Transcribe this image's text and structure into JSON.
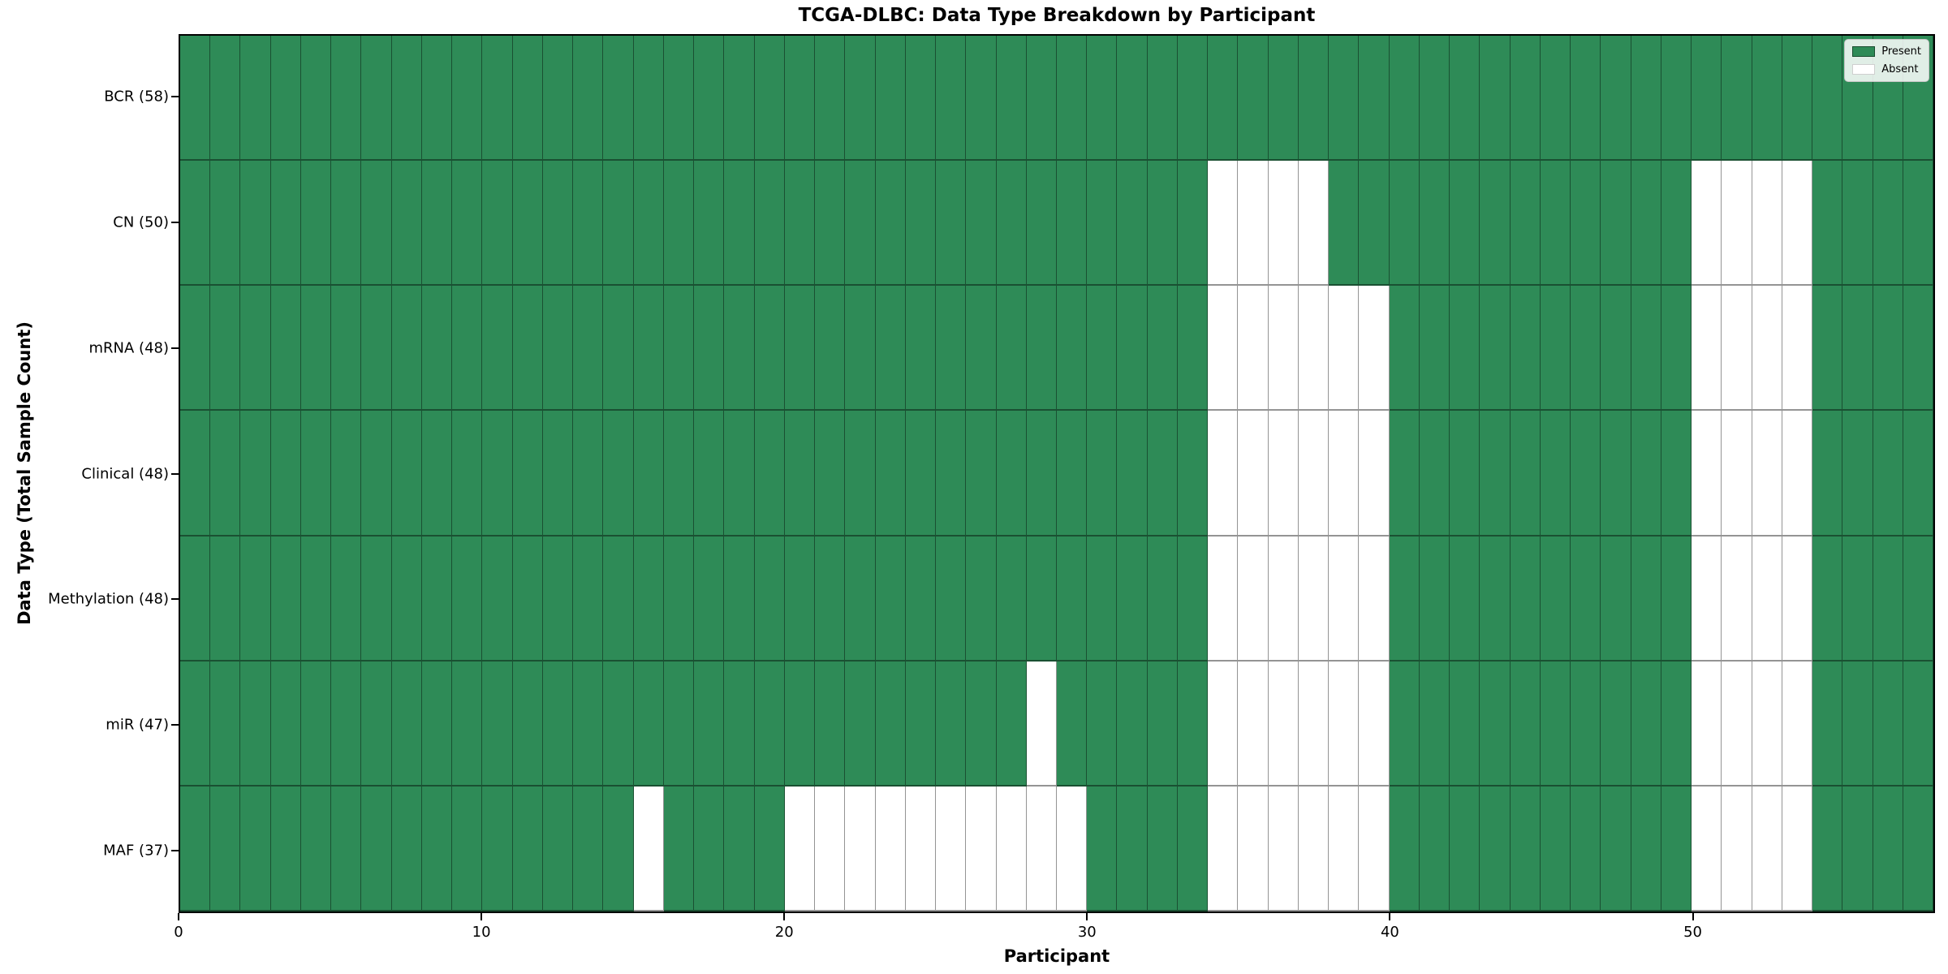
{
  "figure": {
    "title": "TCGA-DLBC: Data Type Breakdown by Participant",
    "xlabel": "Participant",
    "ylabel": "Data Type (Total Sample Count)"
  },
  "legend": {
    "items": [
      {
        "label": "Present",
        "state": "present"
      },
      {
        "label": "Absent",
        "state": "absent"
      }
    ]
  },
  "chart_data": {
    "type": "heatmap",
    "title": "TCGA-DLBC: Data Type Breakdown by Participant",
    "xlabel": "Participant",
    "ylabel": "Data Type (Total Sample Count)",
    "n_participants": 58,
    "x_axis": {
      "min": 0,
      "max": 58,
      "ticks": [
        0,
        10,
        20,
        30,
        40,
        50
      ]
    },
    "cell_values": {
      "present": 1,
      "absent": 0
    },
    "colors": {
      "present": "#2e8b57",
      "absent": "#ffffff"
    },
    "legend_position": "upper right",
    "grid": true,
    "rows": [
      {
        "data_type": "BCR",
        "label": "BCR (58)",
        "total": 58,
        "absent_participants": []
      },
      {
        "data_type": "CN",
        "label": "CN (50)",
        "total": 50,
        "absent_participants": [
          34,
          35,
          36,
          37,
          50,
          51,
          52,
          53
        ]
      },
      {
        "data_type": "mRNA",
        "label": "mRNA (48)",
        "total": 48,
        "absent_participants": [
          34,
          35,
          36,
          37,
          38,
          39,
          50,
          51,
          52,
          53
        ]
      },
      {
        "data_type": "Clinical",
        "label": "Clinical (48)",
        "total": 48,
        "absent_participants": [
          34,
          35,
          36,
          37,
          38,
          39,
          50,
          51,
          52,
          53
        ]
      },
      {
        "data_type": "Methylation",
        "label": "Methylation (48)",
        "total": 48,
        "absent_participants": [
          34,
          35,
          36,
          37,
          38,
          39,
          50,
          51,
          52,
          53
        ]
      },
      {
        "data_type": "miR",
        "label": "miR (47)",
        "total": 47,
        "absent_participants": [
          28,
          34,
          35,
          36,
          37,
          38,
          39,
          50,
          51,
          52,
          53
        ]
      },
      {
        "data_type": "MAF",
        "label": "MAF (37)",
        "total": 37,
        "absent_participants": [
          15,
          20,
          21,
          22,
          23,
          24,
          25,
          26,
          27,
          28,
          29,
          34,
          35,
          36,
          37,
          38,
          39,
          50,
          51,
          52,
          53
        ]
      }
    ]
  }
}
